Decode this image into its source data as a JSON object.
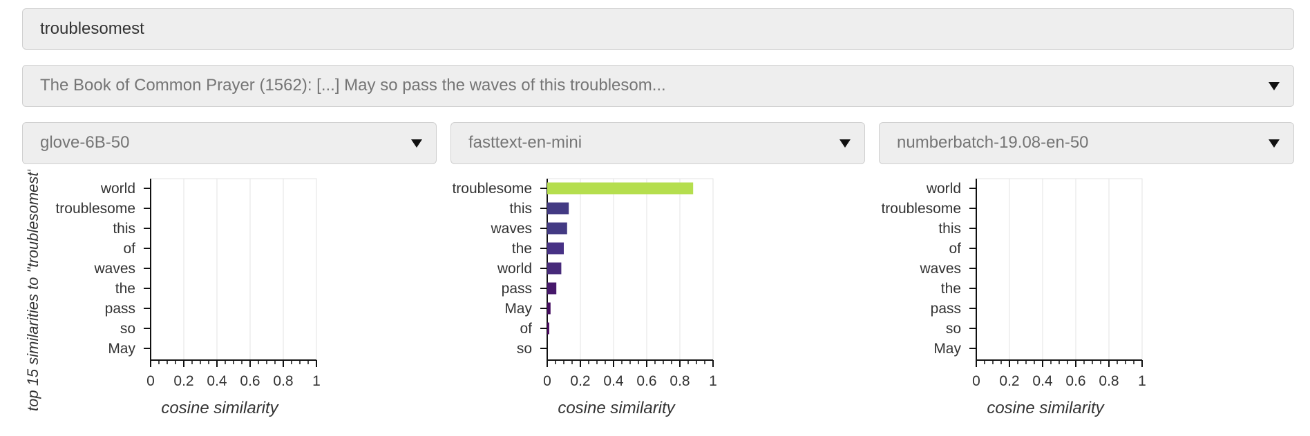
{
  "query": {
    "value": "troublesomest"
  },
  "sentence_select": {
    "selected": "The Book of Common Prayer (1562): [...] May so pass the waves of this troublesom..."
  },
  "side_label": "top 15 similarities to \"troublesomest\"",
  "chart_data": [
    {
      "type": "bar",
      "model": "glove-6B-50",
      "categories": [
        "world",
        "troublesome",
        "this",
        "of",
        "waves",
        "the",
        "pass",
        "so",
        "May"
      ],
      "values": [
        0,
        0,
        0,
        0,
        0,
        0,
        0,
        0,
        0
      ],
      "xlabel": "cosine similarity",
      "xlim": [
        0,
        1
      ],
      "xticks": [
        "0",
        "0.2",
        "0.4",
        "0.6",
        "0.8",
        "1"
      ],
      "grid": true
    },
    {
      "type": "bar",
      "model": "fasttext-en-mini",
      "categories": [
        "troublesome",
        "this",
        "waves",
        "the",
        "world",
        "pass",
        "May",
        "of",
        "so"
      ],
      "values": [
        0.88,
        0.13,
        0.12,
        0.1,
        0.085,
        0.055,
        0.02,
        0.012,
        0
      ],
      "colors": [
        "#b5de4e",
        "#433a83",
        "#433a83",
        "#473185",
        "#472a7a",
        "#46186b",
        "#430a5e",
        "#44035a",
        "#440154"
      ],
      "xlabel": "cosine similarity",
      "xlim": [
        0,
        1
      ],
      "xticks": [
        "0",
        "0.2",
        "0.4",
        "0.6",
        "0.8",
        "1"
      ],
      "grid": true
    },
    {
      "type": "bar",
      "model": "numberbatch-19.08-en-50",
      "categories": [
        "world",
        "troublesome",
        "this",
        "of",
        "waves",
        "the",
        "pass",
        "so",
        "May"
      ],
      "values": [
        0,
        0,
        0,
        0,
        0,
        0,
        0,
        0,
        0
      ],
      "xlabel": "cosine similarity",
      "xlim": [
        0,
        1
      ],
      "xticks": [
        "0",
        "0.2",
        "0.4",
        "0.6",
        "0.8",
        "1"
      ],
      "grid": true
    }
  ]
}
